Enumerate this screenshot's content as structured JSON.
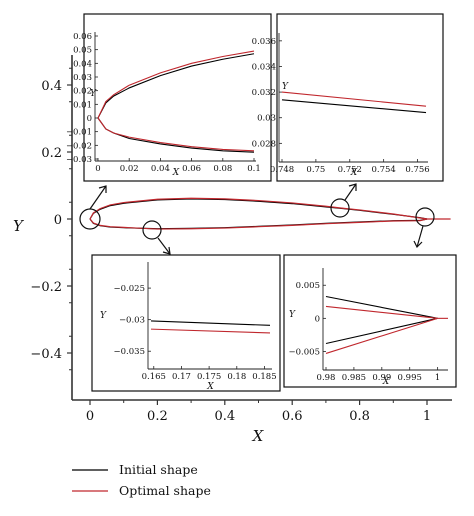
{
  "chart_data": [
    {
      "panel": "main",
      "type": "line",
      "xlabel": "X",
      "ylabel": "Y",
      "xlim": [
        -0.05,
        1.08
      ],
      "ylim": [
        -0.5,
        0.5
      ],
      "xticks": [
        "0",
        "0.2",
        "0.4",
        "0.6",
        "0.8",
        "1"
      ],
      "xtick_values": [
        0,
        0.2,
        0.4,
        0.6,
        0.8,
        1
      ],
      "yticks": [
        "0.4",
        "0.2",
        "0",
        "−0.2",
        "−0.4"
      ],
      "ytick_values": [
        0.4,
        0.2,
        0,
        -0.2,
        -0.4
      ],
      "series": [
        {
          "name": "Initial shape",
          "color": "#000000",
          "upper": {
            "x": [
              0,
              0.01,
              0.03,
              0.06,
              0.1,
              0.2,
              0.3,
              0.4,
              0.5,
              0.6,
              0.7,
              0.75,
              0.8,
              0.9,
              0.98,
              1.0
            ],
            "y": [
              0,
              0.017,
              0.029,
              0.04,
              0.047,
              0.057,
              0.06,
              0.058,
              0.053,
              0.046,
              0.036,
              0.0314,
              0.026,
              0.014,
              0.004,
              0
            ]
          },
          "lower": {
            "x": [
              0,
              0.01,
              0.03,
              0.06,
              0.1,
              0.2,
              0.3,
              0.4,
              0.5,
              0.6,
              0.7,
              0.8,
              0.9,
              0.98,
              1.0
            ],
            "y": [
              0,
              -0.013,
              -0.02,
              -0.024,
              -0.026,
              -0.029,
              -0.028,
              -0.026,
              -0.022,
              -0.018,
              -0.013,
              -0.009,
              -0.005,
              -0.004,
              0
            ]
          }
        },
        {
          "name": "Optimal shape",
          "color": "#c0272d",
          "upper": {
            "x": [
              0,
              0.01,
              0.03,
              0.06,
              0.1,
              0.2,
              0.3,
              0.4,
              0.5,
              0.6,
              0.7,
              0.75,
              0.8,
              0.9,
              0.98,
              1.0
            ],
            "y": [
              0,
              0.018,
              0.031,
              0.042,
              0.049,
              0.059,
              0.062,
              0.06,
              0.055,
              0.048,
              0.038,
              0.032,
              0.027,
              0.015,
              0.003,
              0
            ]
          },
          "lower": {
            "x": [
              0,
              0.01,
              0.03,
              0.06,
              0.1,
              0.2,
              0.3,
              0.4,
              0.5,
              0.6,
              0.7,
              0.8,
              0.9,
              0.98,
              1.0
            ],
            "y": [
              0,
              -0.012,
              -0.019,
              -0.023,
              -0.025,
              -0.03,
              -0.029,
              -0.027,
              -0.023,
              -0.019,
              -0.014,
              -0.01,
              -0.006,
              -0.005,
              0
            ]
          }
        }
      ]
    },
    {
      "panel": "inset-leading-edge",
      "type": "line",
      "xlabel": "X",
      "ylabel": "Y",
      "xlim": [
        0,
        0.1
      ],
      "ylim": [
        -0.03,
        0.06
      ],
      "xticks": [
        "0",
        "0.02",
        "0.04",
        "0.06",
        "0.08",
        "0.1"
      ],
      "xtick_values": [
        0,
        0.02,
        0.04,
        0.06,
        0.08,
        0.1
      ],
      "yticks": [
        "0.06",
        "0.05",
        "0.04",
        "0.03",
        "0.02",
        "0.01",
        "0",
        "−0.01",
        "−0.02",
        "−0.03"
      ],
      "ytick_values": [
        0.06,
        0.05,
        0.04,
        0.03,
        0.02,
        0.01,
        0,
        -0.01,
        -0.02,
        -0.03
      ],
      "series": [
        {
          "name": "Initial shape",
          "color": "#000000",
          "upper": {
            "x": [
              0,
              0.005,
              0.01,
              0.02,
              0.04,
              0.06,
              0.08,
              0.1
            ],
            "y": [
              0,
              0.011,
              0.016,
              0.022,
              0.031,
              0.038,
              0.043,
              0.047
            ]
          },
          "lower": {
            "x": [
              0,
              0.005,
              0.01,
              0.02,
              0.04,
              0.06,
              0.08,
              0.1
            ],
            "y": [
              0,
              -0.008,
              -0.011,
              -0.015,
              -0.019,
              -0.022,
              -0.024,
              -0.025
            ]
          }
        },
        {
          "name": "Optimal shape",
          "color": "#c0272d",
          "upper": {
            "x": [
              0,
              0.005,
              0.01,
              0.02,
              0.04,
              0.06,
              0.08,
              0.1
            ],
            "y": [
              0,
              0.012,
              0.017,
              0.024,
              0.033,
              0.04,
              0.045,
              0.049
            ]
          },
          "lower": {
            "x": [
              0,
              0.005,
              0.01,
              0.02,
              0.04,
              0.06,
              0.08,
              0.1
            ],
            "y": [
              0,
              -0.008,
              -0.011,
              -0.014,
              -0.018,
              -0.021,
              -0.023,
              -0.024
            ]
          }
        }
      ]
    },
    {
      "panel": "inset-upper-075",
      "type": "line",
      "xlabel": "X",
      "ylabel": "Y",
      "xlim": [
        0.748,
        0.7565
      ],
      "ylim": [
        0.0267,
        0.0363
      ],
      "xticks": [
        "0.748",
        "0.75",
        "0.752",
        "0.754",
        "0.756"
      ],
      "xtick_values": [
        0.748,
        0.75,
        0.752,
        0.754,
        0.756
      ],
      "yticks": [
        "0.036",
        "0.034",
        "0.032",
        "0.03",
        "0.028"
      ],
      "ytick_values": [
        0.036,
        0.034,
        0.032,
        0.03,
        0.028
      ],
      "series": [
        {
          "name": "Initial shape",
          "color": "#000000",
          "x": [
            0.748,
            0.7565
          ],
          "y": [
            0.0314,
            0.0304
          ]
        },
        {
          "name": "Optimal shape",
          "color": "#c0272d",
          "x": [
            0.748,
            0.7565
          ],
          "y": [
            0.032,
            0.0309
          ]
        }
      ]
    },
    {
      "panel": "inset-lower-018",
      "type": "line",
      "xlabel": "X",
      "ylabel": "Y",
      "xlim": [
        0.1645,
        0.186
      ],
      "ylim": [
        -0.0375,
        -0.0215
      ],
      "xticks": [
        "0.165",
        "0.17",
        "0.175",
        "0.18",
        "0.185"
      ],
      "xtick_values": [
        0.165,
        0.17,
        0.175,
        0.18,
        0.185
      ],
      "yticks": [
        "−0.025",
        "−0.03",
        "−0.035"
      ],
      "ytick_values": [
        -0.025,
        -0.03,
        -0.035
      ],
      "series": [
        {
          "name": "Initial shape",
          "color": "#000000",
          "x": [
            0.1645,
            0.186
          ],
          "y": [
            -0.0302,
            -0.0309
          ]
        },
        {
          "name": "Optimal shape",
          "color": "#c0272d",
          "x": [
            0.1645,
            0.186
          ],
          "y": [
            -0.0315,
            -0.0321
          ]
        }
      ]
    },
    {
      "panel": "inset-trailing-edge",
      "type": "line",
      "xlabel": "X",
      "ylabel": "Y",
      "xlim": [
        0.98,
        1.0015
      ],
      "ylim": [
        -0.0075,
        0.007
      ],
      "xticks": [
        "0.98",
        "0.985",
        "0.99",
        "0.995",
        "1"
      ],
      "xtick_values": [
        0.98,
        0.985,
        0.99,
        0.995,
        1
      ],
      "yticks": [
        "0.005",
        "0",
        "−0.005"
      ],
      "ytick_values": [
        0.005,
        0,
        -0.005
      ],
      "series": [
        {
          "name": "Initial shape",
          "color": "#000000",
          "upper": {
            "x": [
              0.98,
              1.0
            ],
            "y": [
              0.0033,
              0
            ]
          },
          "lower": {
            "x": [
              0.98,
              1.0
            ],
            "y": [
              -0.0038,
              0
            ]
          }
        },
        {
          "name": "Optimal shape",
          "color": "#c0272d",
          "upper": {
            "x": [
              0.98,
              1.0
            ],
            "y": [
              0.0018,
              0
            ]
          },
          "lower": {
            "x": [
              0.98,
              1.0
            ],
            "y": [
              -0.0053,
              0
            ]
          }
        }
      ]
    }
  ],
  "legend": [
    {
      "label": "Initial shape",
      "color": "#000000"
    },
    {
      "label": "Optimal shape",
      "color": "#c0272d"
    }
  ]
}
